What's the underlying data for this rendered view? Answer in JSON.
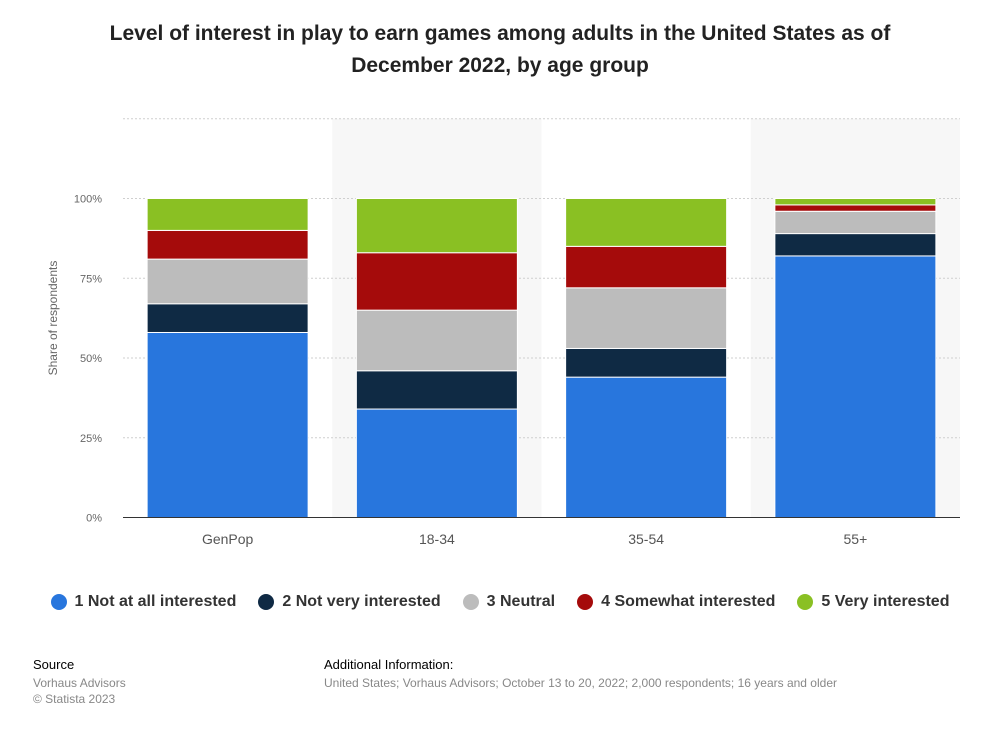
{
  "title": "Level of interest in play to earn games among adults in the United States as of December 2022, by age group",
  "chart_data": {
    "type": "bar",
    "stacked": true,
    "categories": [
      "GenPop",
      "18-34",
      "35-54",
      "55+"
    ],
    "series": [
      {
        "name": "1 Not at all interested",
        "color": "#2876dd",
        "values": [
          58,
          34,
          44,
          82
        ]
      },
      {
        "name": "2 Not very interested",
        "color": "#0f2a44",
        "values": [
          9,
          12,
          9,
          7
        ]
      },
      {
        "name": "3 Neutral",
        "color": "#bcbcbc",
        "values": [
          14,
          19,
          19,
          7
        ]
      },
      {
        "name": "4 Somewhat interested",
        "color": "#a50b0b",
        "values": [
          9,
          18,
          13,
          2
        ]
      },
      {
        "name": "5 Very interested",
        "color": "#8ac023",
        "values": [
          10,
          17,
          15,
          2
        ]
      }
    ],
    "ylabel": "Share of respondents",
    "xlabel": "",
    "ylim": [
      0,
      125
    ],
    "yticks": [
      0,
      25,
      50,
      75,
      100
    ],
    "ytick_labels": [
      "0%",
      "25%",
      "50%",
      "75%",
      "100%"
    ],
    "grid": true,
    "legend_position": "bottom"
  },
  "footer": {
    "source_label": "Source",
    "source_lines": [
      "Vorhaus Advisors",
      "© Statista 2023"
    ],
    "info_label": "Additional Information:",
    "info_text": "United States; Vorhaus Advisors; October 13 to 20, 2022; 2,000 respondents; 16 years and older"
  }
}
